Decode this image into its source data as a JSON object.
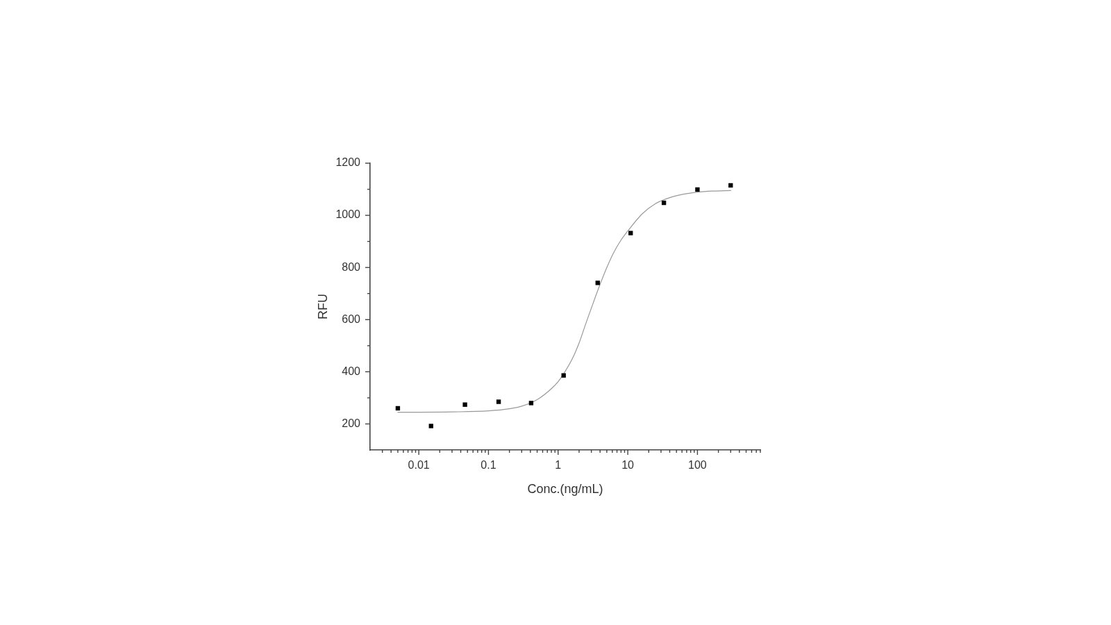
{
  "chart_data": {
    "type": "scatter",
    "xlabel": "Conc.(ng/mL)",
    "ylabel": "RFU",
    "log": "x",
    "xlim": [
      0.002,
      800
    ],
    "xticks": [
      {
        "value": 0.003,
        "label": null
      },
      {
        "value": 0.004,
        "label": null
      },
      {
        "value": 0.005,
        "label": null
      },
      {
        "value": 0.006,
        "label": null
      },
      {
        "value": 0.007,
        "label": null
      },
      {
        "value": 0.008,
        "label": null
      },
      {
        "value": 0.009,
        "label": null
      },
      0.01,
      {
        "value": 0.02,
        "label": null
      },
      {
        "value": 0.03,
        "label": null
      },
      {
        "value": 0.04,
        "label": null
      },
      {
        "value": 0.05,
        "label": null
      },
      {
        "value": 0.06,
        "label": null
      },
      {
        "value": 0.07,
        "label": null
      },
      {
        "value": 0.08,
        "label": null
      },
      {
        "value": 0.09,
        "label": null
      },
      0.1,
      {
        "value": 0.2,
        "label": null
      },
      {
        "value": 0.3,
        "label": null
      },
      {
        "value": 0.4,
        "label": null
      },
      {
        "value": 0.5,
        "label": null
      },
      {
        "value": 0.6,
        "label": null
      },
      {
        "value": 0.7,
        "label": null
      },
      {
        "value": 0.8,
        "label": null
      },
      {
        "value": 0.9,
        "label": null
      },
      1,
      {
        "value": 2,
        "label": null
      },
      {
        "value": 3,
        "label": null
      },
      {
        "value": 4,
        "label": null
      },
      {
        "value": 5,
        "label": null
      },
      {
        "value": 6,
        "label": null
      },
      {
        "value": 7,
        "label": null
      },
      {
        "value": 8,
        "label": null
      },
      {
        "value": 9,
        "label": null
      },
      10,
      {
        "value": 20,
        "label": null
      },
      {
        "value": 30,
        "label": null
      },
      {
        "value": 40,
        "label": null
      },
      {
        "value": 50,
        "label": null
      },
      {
        "value": 60,
        "label": null
      },
      {
        "value": 70,
        "label": null
      },
      {
        "value": 80,
        "label": null
      },
      {
        "value": 90,
        "label": null
      },
      100,
      {
        "value": 200,
        "label": null
      },
      {
        "value": 300,
        "label": null
      },
      {
        "value": 400,
        "label": null
      },
      {
        "value": 500,
        "label": null
      },
      {
        "value": 600,
        "label": null
      },
      {
        "value": 700,
        "label": null
      },
      {
        "value": 800,
        "label": null
      }
    ],
    "ylim": [
      100,
      1200
    ],
    "yticks": [
      200,
      {
        "value": 300,
        "label": null
      },
      400,
      {
        "value": 500,
        "label": null
      },
      600,
      {
        "value": 700,
        "label": null
      },
      800,
      {
        "value": 900,
        "label": null
      },
      1000,
      {
        "value": 1100,
        "label": null
      },
      1200
    ],
    "grid": false,
    "legend": false,
    "marker": "square",
    "series": [
      {
        "color": "#000000",
        "x": [
          0.005,
          0.015,
          0.046,
          0.14,
          0.41,
          1.2,
          3.7,
          11,
          33,
          100,
          300
        ],
        "values": [
          260,
          192,
          274,
          285,
          280,
          386,
          741,
          932,
          1048,
          1099,
          1115
        ]
      },
      {
        "type": "line",
        "color": "#999999",
        "marker": "none",
        "line_style": "solid",
        "x": [
          0.005,
          0.01,
          0.03,
          0.1,
          0.2,
          0.3,
          0.5,
          0.8,
          1,
          1.2,
          1.6,
          2,
          2.5,
          3.2,
          4,
          5,
          6.3,
          8,
          10,
          16,
          25,
          40,
          63,
          100,
          160,
          300
        ],
        "values": [
          245,
          245,
          246,
          250,
          258,
          268,
          293,
          335,
          362,
          392,
          450,
          510,
          585,
          665,
          735,
          800,
          858,
          905,
          940,
          1005,
          1045,
          1068,
          1081,
          1089,
          1093,
          1095
        ]
      }
    ]
  }
}
